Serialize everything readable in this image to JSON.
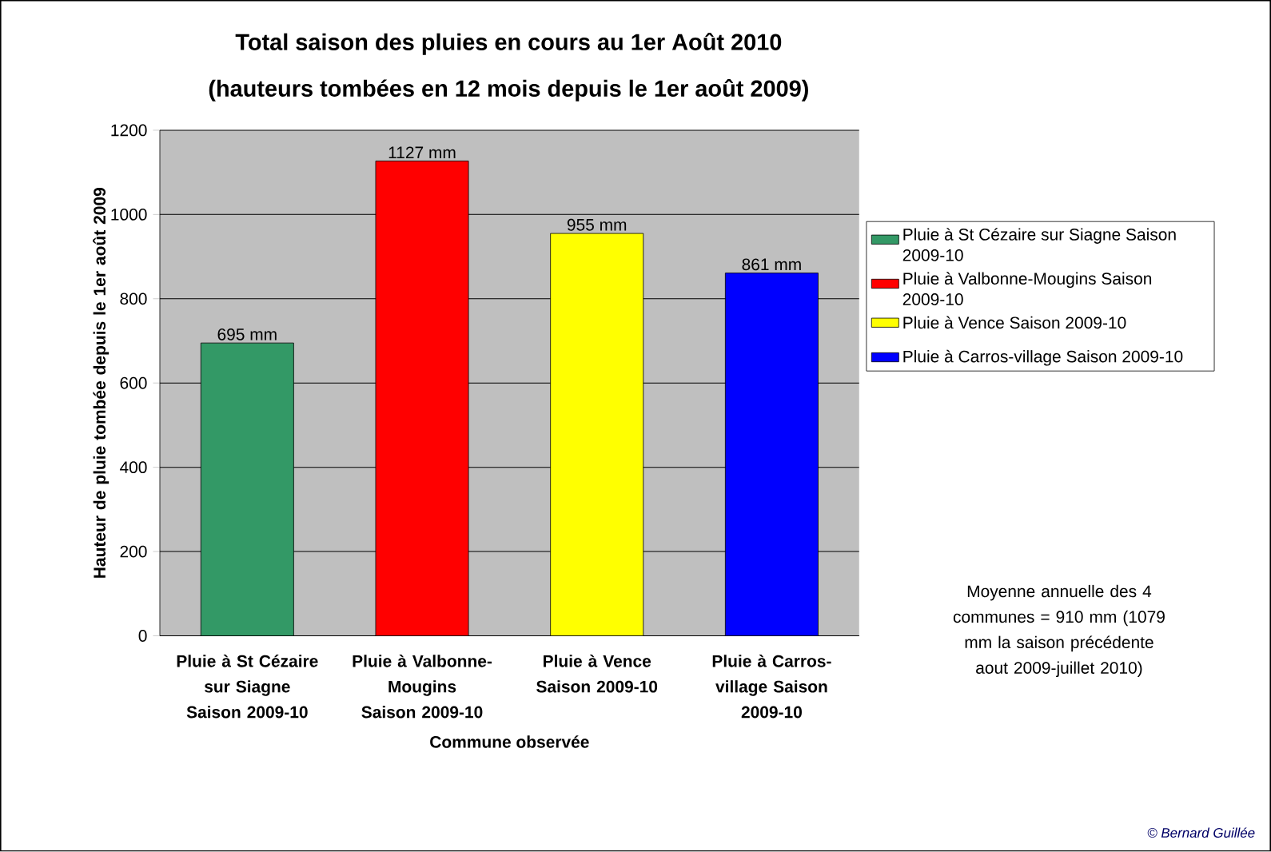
{
  "chart_data": {
    "type": "bar",
    "title": "Total saison des pluies en cours au 1er Août 2010",
    "subtitle": "(hauteurs tombées en 12 mois depuis le 1er août 2009)",
    "xlabel": "Commune observée",
    "ylabel": "Hauteur de pluie tombée depuis le 1er août 2009",
    "categories": [
      "Pluie à St Cézaire sur Siagne Saison 2009-10",
      "Pluie à Valbonne-Mougins Saison 2009-10",
      "Pluie à Vence Saison 2009-10",
      "Pluie à Carros-village Saison 2009-10"
    ],
    "series": [
      {
        "name": "Pluie à St Cézaire sur Siagne Saison 2009-10",
        "color": "#339966",
        "values": [
          695,
          null,
          null,
          null
        ],
        "value_labels": [
          "695 mm",
          null,
          null,
          null
        ]
      },
      {
        "name": "Pluie à Valbonne-Mougins Saison 2009-10",
        "color": "#ff0000",
        "values": [
          null,
          1127,
          null,
          null
        ],
        "value_labels": [
          null,
          "1127 mm",
          null,
          null
        ]
      },
      {
        "name": "Pluie à Vence Saison 2009-10",
        "color": "#ffff00",
        "values": [
          null,
          null,
          955,
          null
        ],
        "value_labels": [
          null,
          null,
          "955 mm",
          null
        ]
      },
      {
        "name": "Pluie à Carros-village Saison 2009-10",
        "color": "#0000ff",
        "values": [
          null,
          null,
          null,
          861
        ],
        "value_labels": [
          null,
          null,
          null,
          "861 mm"
        ]
      }
    ],
    "ylim": [
      0,
      1200
    ],
    "yticks": [
      0,
      200,
      400,
      600,
      800,
      1000,
      1200
    ],
    "grid": "y",
    "legend": "right",
    "annotations": [
      "Moyenne annuelle des 4 communes = 910 mm (1079 mm la saison précédente aout 2009-juillet 2010)",
      "© Bernard Guillée"
    ]
  }
}
